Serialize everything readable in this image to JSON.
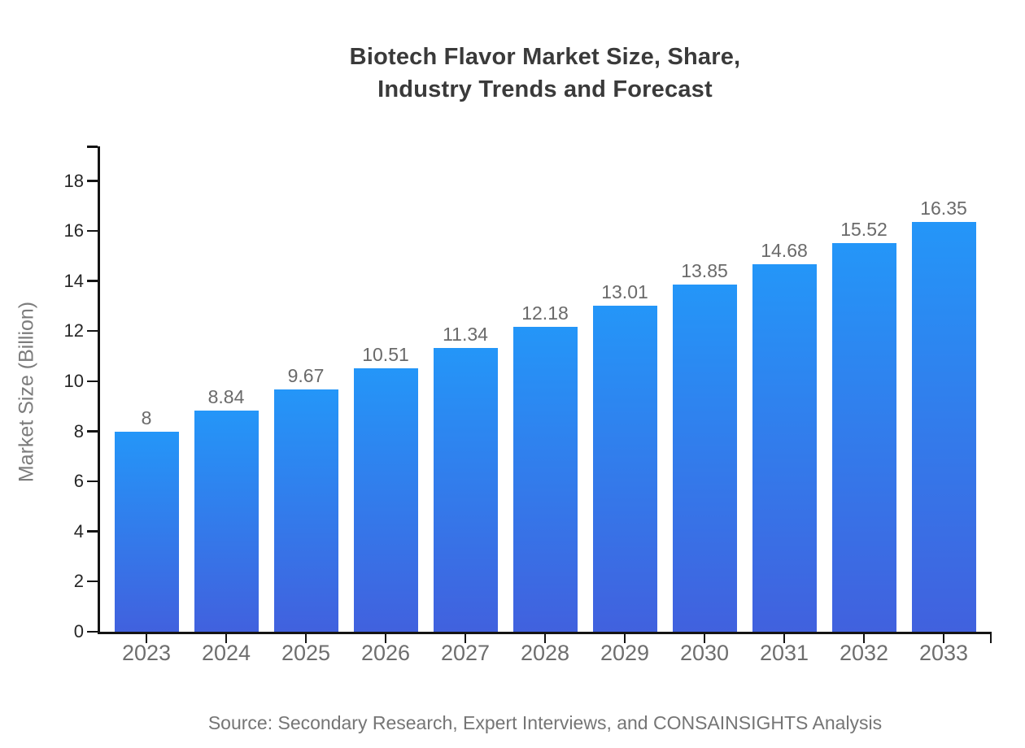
{
  "page": {
    "title": "Biotech Flavor Market Size, Share,\nIndustry Trends and Forecast",
    "source_note": "Source: Secondary Research, Expert Interviews, and CONSAINSIGHTS Analysis"
  },
  "chart_data": {
    "type": "bar",
    "title": "Biotech Flavor Market Size, Share, Industry Trends and Forecast",
    "categories": [
      "2023",
      "2024",
      "2025",
      "2026",
      "2027",
      "2028",
      "2029",
      "2030",
      "2031",
      "2032",
      "2033"
    ],
    "values": [
      8,
      8.84,
      9.67,
      10.51,
      11.34,
      12.18,
      13.01,
      13.85,
      14.68,
      15.52,
      16.35
    ],
    "value_labels": [
      "8",
      "8.84",
      "9.67",
      "10.51",
      "11.34",
      "12.18",
      "13.01",
      "13.85",
      "14.68",
      "15.52",
      "16.35"
    ],
    "xlabel": "",
    "ylabel": "Market Size (Billion)",
    "yticks": [
      0,
      2,
      4,
      6,
      8,
      10,
      12,
      14,
      16,
      18
    ],
    "ylim": [
      0,
      19.4
    ],
    "grid": false,
    "legend": "none",
    "colors": {
      "bar_gradient_top": "#2496f8",
      "bar_gradient_bottom": "#4161de",
      "axis": "#141414",
      "ytick_label": "#262626",
      "category_label": "#6e6e6e",
      "value_label": "#6a6a6a",
      "title": "#3a3a3a",
      "ylabel": "#7c7c7c",
      "source": "#757575",
      "background": "#ffffff"
    }
  }
}
